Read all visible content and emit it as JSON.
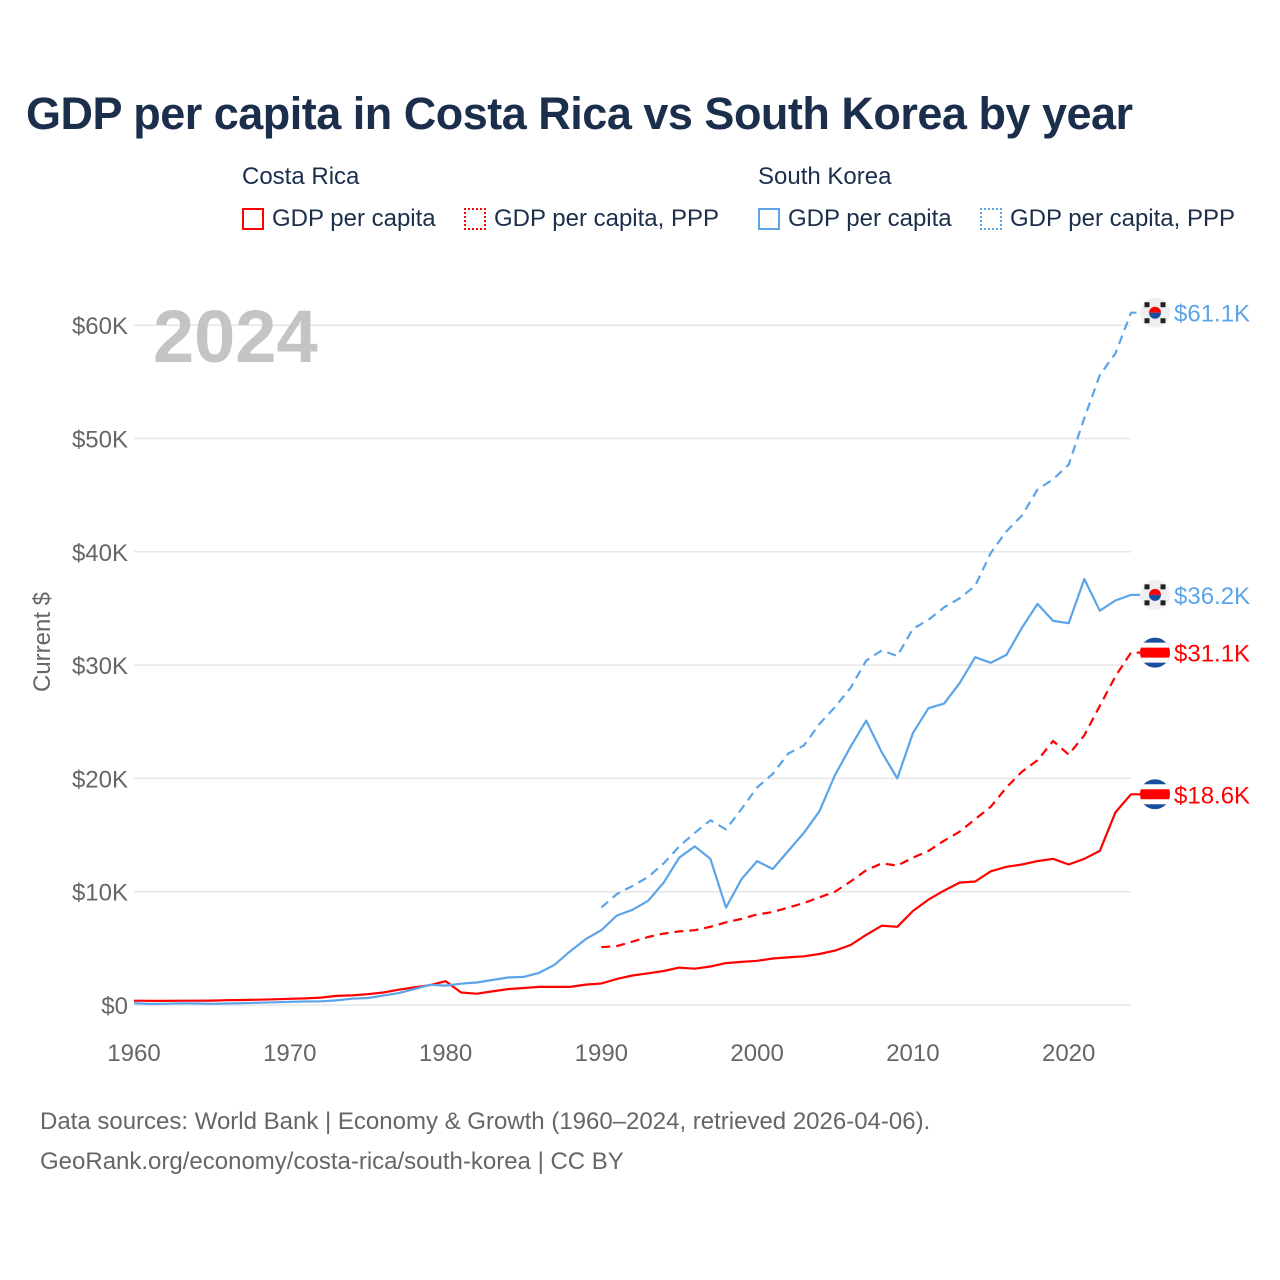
{
  "chart_data": {
    "type": "line",
    "title": "GDP per capita in Costa Rica vs South Korea by year",
    "xlabel": "",
    "ylabel": "Current $",
    "xlim": [
      1960,
      2024
    ],
    "ylim": [
      0,
      61100
    ],
    "x_ticks": [
      1960,
      1970,
      1980,
      1990,
      2000,
      2010,
      2020
    ],
    "x_tick_labels": [
      "1960",
      "1970",
      "1980",
      "1990",
      "2000",
      "2010",
      "2020"
    ],
    "y_ticks": [
      0,
      10000,
      20000,
      30000,
      40000,
      50000,
      60000
    ],
    "y_tick_labels": [
      "$0",
      "$10K",
      "$20K",
      "$30K",
      "$40K",
      "$50K",
      "$60K"
    ],
    "grid": true,
    "watermark_year": "2024",
    "legend": {
      "placement": "top",
      "groups": [
        {
          "name": "Costa Rica",
          "items": [
            "GDP per capita",
            "GDP per capita, PPP"
          ]
        },
        {
          "name": "South Korea",
          "items": [
            "GDP per capita",
            "GDP per capita, PPP"
          ]
        }
      ]
    },
    "series": [
      {
        "name": "Costa Rica GDP per capita",
        "country": "Costa Rica",
        "color": "#ff0000",
        "dash": false,
        "start_year": 1960,
        "end_label": "$18.6K",
        "values": [
          380,
          370,
          360,
          380,
          380,
          390,
          420,
          440,
          470,
          500,
          550,
          580,
          650,
          800,
          850,
          950,
          1100,
          1350,
          1550,
          1750,
          2100,
          1100,
          1000,
          1200,
          1400,
          1500,
          1600,
          1600,
          1600,
          1800,
          1900,
          2300,
          2600,
          2800,
          3000,
          3300,
          3200,
          3400,
          3700,
          3800,
          3900,
          4100,
          4200,
          4300,
          4500,
          4800,
          5300,
          6200,
          7000,
          6900,
          8300,
          9300,
          10100,
          10800,
          10900,
          11800,
          12200,
          12400,
          12700,
          12900,
          12400,
          12900,
          13600,
          17000,
          18600
        ]
      },
      {
        "name": "Costa Rica GDP per capita, PPP",
        "country": "Costa Rica",
        "color": "#ff0000",
        "dash": true,
        "start_year": 1990,
        "end_label": "$31.1K",
        "values": [
          5100,
          5200,
          5600,
          6000,
          6300,
          6500,
          6600,
          6900,
          7300,
          7600,
          8000,
          8200,
          8600,
          9000,
          9500,
          10000,
          10900,
          11900,
          12500,
          12300,
          13000,
          13600,
          14500,
          15300,
          16400,
          17500,
          19200,
          20600,
          21600,
          23300,
          22100,
          23800,
          26400,
          29000,
          31100
        ]
      },
      {
        "name": "South Korea GDP per capita",
        "country": "South Korea",
        "color": "#5ba4ea",
        "dash": false,
        "start_year": 1960,
        "end_label": "$36.2K",
        "values": [
          160,
          100,
          110,
          150,
          130,
          110,
          130,
          160,
          200,
          240,
          280,
          310,
          330,
          410,
          560,
          620,
          830,
          1050,
          1400,
          1780,
          1710,
          1880,
          1990,
          2210,
          2430,
          2480,
          2830,
          3550,
          4750,
          5820,
          6600,
          7900,
          8400,
          9200,
          10800,
          13000,
          14000,
          12900,
          8600,
          11100,
          12700,
          12000,
          13600,
          15200,
          17100,
          20300,
          22800,
          25100,
          22300,
          20000,
          24000,
          26200,
          26600,
          28400,
          30700,
          30200,
          30900,
          33300,
          35400,
          33900,
          33700,
          37600,
          34800,
          35700,
          36200
        ]
      },
      {
        "name": "South Korea GDP per capita, PPP",
        "country": "South Korea",
        "color": "#5ba4ea",
        "dash": true,
        "start_year": 1990,
        "end_label": "$61.1K",
        "values": [
          8600,
          9800,
          10500,
          11300,
          12500,
          14000,
          15200,
          16300,
          15500,
          17300,
          19200,
          20400,
          22200,
          22900,
          24800,
          26300,
          28000,
          30400,
          31300,
          30800,
          33200,
          34000,
          35100,
          35900,
          37000,
          39900,
          41800,
          43200,
          45500,
          46400,
          47700,
          51800,
          55600,
          57500,
          61100
        ]
      }
    ]
  },
  "footer": {
    "line1": "Data sources: World Bank | Economy & Growth (1960–2024, retrieved 2026-04-06).",
    "line2": "GeoRank.org/economy/costa-rica/south-korea | CC BY"
  },
  "colors": {
    "costa_rica": "#ff0000",
    "south_korea": "#5ba4ea",
    "title": "#1b2e4b"
  }
}
